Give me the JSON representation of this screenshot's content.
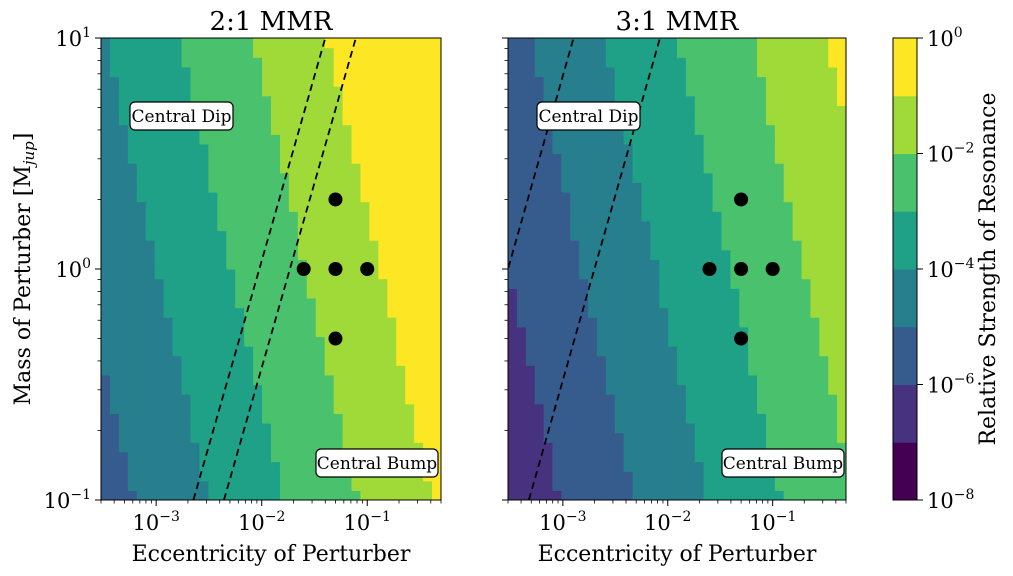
{
  "chart_data": [
    {
      "type": "heatmap",
      "title": "2:1 MMR",
      "xlabel": "Eccentricity of Perturber",
      "ylabel": "Mass of Perturber [M",
      "ylabel_sub": "jup",
      "ylabel_end": "]",
      "xscale": "log",
      "yscale": "log",
      "xlim": [
        0.0003,
        0.5
      ],
      "ylim": [
        0.1,
        10
      ],
      "xticks": [
        {
          "value": 0.001,
          "base": "10",
          "exp": "−3"
        },
        {
          "value": 0.01,
          "base": "10",
          "exp": "−2"
        },
        {
          "value": 0.1,
          "base": "10",
          "exp": "−1"
        }
      ],
      "yticks": [
        {
          "value": 0.1,
          "base": "10",
          "exp": "−1"
        },
        {
          "value": 1,
          "base": "10",
          "exp": "0"
        },
        {
          "value": 10,
          "base": "10",
          "exp": "1"
        }
      ],
      "field_offset": 1.25,
      "lines": [
        {
          "a": 0.0095,
          "b": 1.6
        },
        {
          "a": 0.0185,
          "b": 1.6
        }
      ],
      "points": [
        {
          "e": 0.025,
          "m": 1
        },
        {
          "e": 0.05,
          "m": 1
        },
        {
          "e": 0.1,
          "m": 1
        },
        {
          "e": 0.05,
          "m": 2
        },
        {
          "e": 0.05,
          "m": 0.5
        }
      ],
      "annotations": [
        {
          "text": "Central Dip",
          "position": "upper-left"
        },
        {
          "text": "Central Bump",
          "position": "lower-right"
        }
      ]
    },
    {
      "type": "heatmap",
      "title": "3:1 MMR",
      "xlabel": "Eccentricity of Perturber",
      "xscale": "log",
      "yscale": "log",
      "xlim": [
        0.0003,
        0.5
      ],
      "ylim": [
        0.1,
        10
      ],
      "xticks": [
        {
          "value": 0.001,
          "base": "10",
          "exp": "−3"
        },
        {
          "value": 0.01,
          "base": "10",
          "exp": "−2"
        },
        {
          "value": 0.1,
          "base": "10",
          "exp": "−1"
        }
      ],
      "field_offset": 0.0,
      "lines": [
        {
          "a": 0.0003,
          "b": 1.6
        },
        {
          "a": 0.002,
          "b": 1.6
        }
      ],
      "points": [
        {
          "e": 0.025,
          "m": 1
        },
        {
          "e": 0.05,
          "m": 1
        },
        {
          "e": 0.1,
          "m": 1
        },
        {
          "e": 0.05,
          "m": 2
        },
        {
          "e": 0.05,
          "m": 0.5
        }
      ],
      "annotations": [
        {
          "text": "Central Dip",
          "position": "upper-left"
        },
        {
          "text": "Central Bump",
          "position": "lower-right"
        }
      ]
    }
  ],
  "colorbar": {
    "label": "Relative Strength of Resonance",
    "scale": "log",
    "range": [
      1e-08,
      1
    ],
    "levels": 8,
    "colors": [
      "#440154",
      "#46327e",
      "#365c8d",
      "#277f8e",
      "#1fa187",
      "#4ac16d",
      "#a0da39",
      "#fde725"
    ],
    "ticks": [
      {
        "value": 1e-08,
        "base": "10",
        "exp": "−8"
      },
      {
        "value": 1e-06,
        "base": "10",
        "exp": "−6"
      },
      {
        "value": 0.0001,
        "base": "10",
        "exp": "−4"
      },
      {
        "value": 0.01,
        "base": "10",
        "exp": "−2"
      },
      {
        "value": 1,
        "base": "10",
        "exp": "0"
      }
    ]
  }
}
